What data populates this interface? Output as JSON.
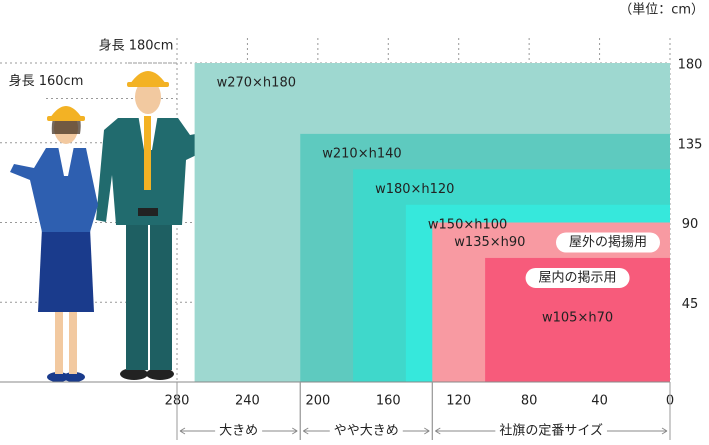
{
  "chart_data": {
    "type": "nested-rect",
    "unit_label": "（単位：cm）",
    "xlim": [
      280,
      0
    ],
    "ylim": [
      0,
      180
    ],
    "xticks": [
      280,
      240,
      200,
      160,
      120,
      80,
      40,
      0
    ],
    "yticks": [
      45,
      90,
      135,
      180
    ],
    "grid": true,
    "rects": [
      {
        "label": "w270×h180",
        "w": 270,
        "h": 180,
        "color": "#9ed8d0"
      },
      {
        "label": "w210×h140",
        "w": 210,
        "h": 140,
        "color": "#5ecabf"
      },
      {
        "label": "w180×h120",
        "w": 180,
        "h": 120,
        "color": "#3fd8cb"
      },
      {
        "label": "w150×h100",
        "w": 150,
        "h": 100,
        "color": "#36e8dc"
      },
      {
        "label": "w135×h90",
        "w": 135,
        "h": 90,
        "color": "#f89aa2",
        "tag": "屋外の掲揚用"
      },
      {
        "label": "w105×h70",
        "w": 105,
        "h": 70,
        "color": "#f75b7b",
        "tag": "屋内の掲示用"
      }
    ],
    "groups": [
      {
        "label": "大きめ",
        "from": 280,
        "to": 210
      },
      {
        "label": "やや大きめ",
        "from": 210,
        "to": 135
      },
      {
        "label": "社旗の定番サイズ",
        "from": 135,
        "to": 0
      }
    ],
    "people": [
      {
        "label": "身長 180cm",
        "height": 180
      },
      {
        "label": "身長 160cm",
        "height": 160
      }
    ]
  }
}
